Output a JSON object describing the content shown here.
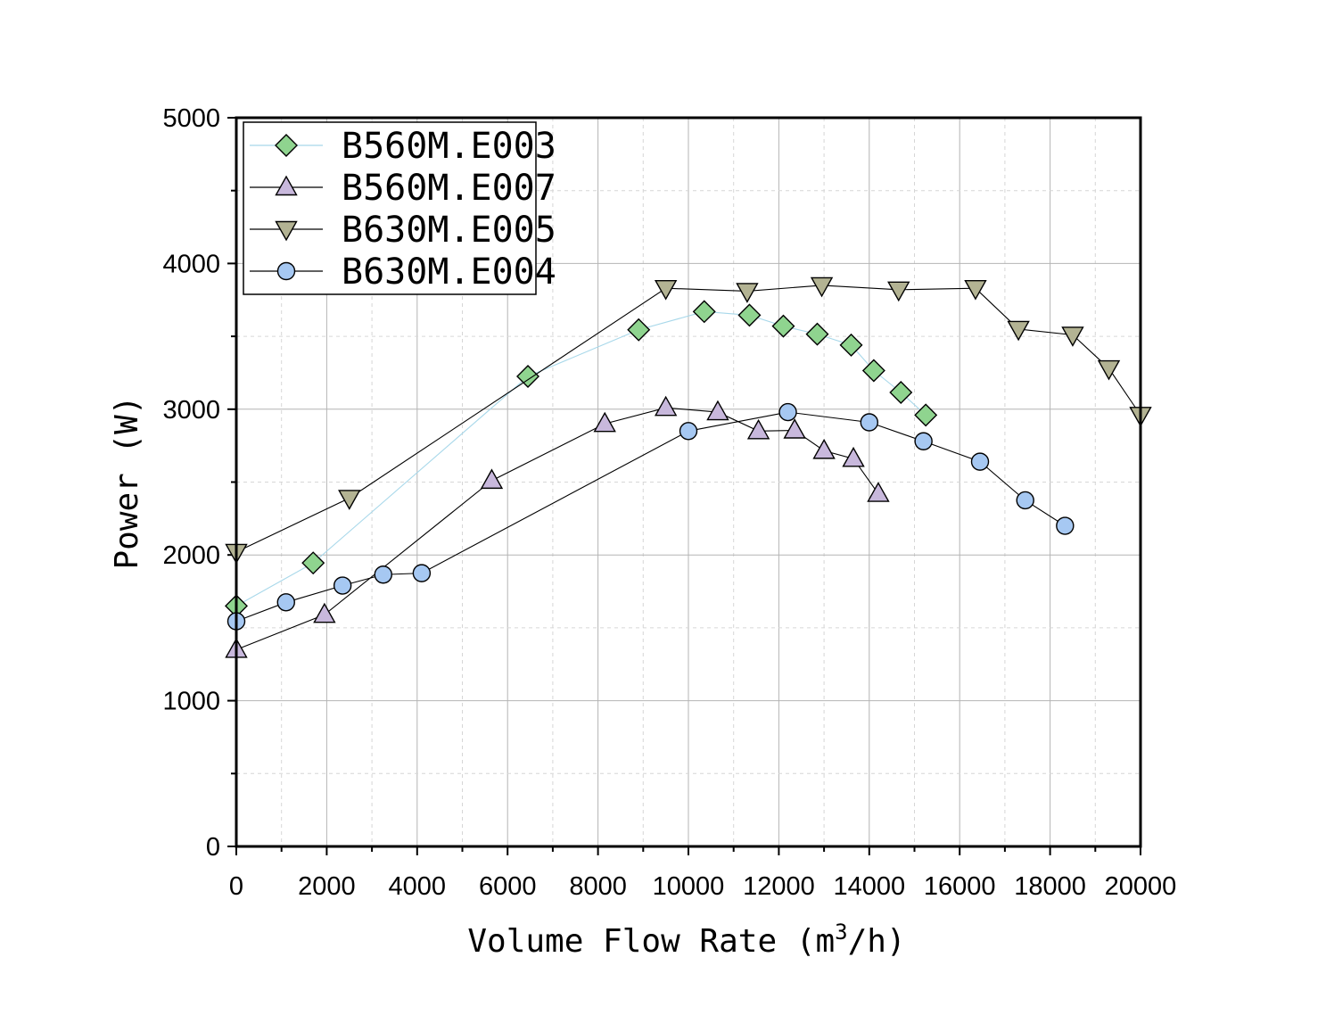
{
  "chart_data": {
    "type": "line",
    "title": "",
    "xlabel": "Volume Flow Rate (m",
    "xlabel_sup": "3",
    "xlabel_tail": "/h)",
    "ylabel": "Power (W)",
    "xlim": [
      0,
      20000
    ],
    "ylim": [
      0,
      5000
    ],
    "x_ticks": [
      "0",
      "2000",
      "4000",
      "6000",
      "8000",
      "10000",
      "12000",
      "14000",
      "16000",
      "18000",
      "20000"
    ],
    "y_ticks": [
      "0",
      "1000",
      "2000",
      "3000",
      "4000",
      "5000"
    ],
    "grid": true,
    "legend_position": "top-left",
    "series": [
      {
        "name": "B560M.E003",
        "marker": "diamond",
        "fill": "#8fd48f",
        "line_color": "#a8d8ea",
        "x": [
          0,
          1700,
          6450,
          8900,
          10350,
          11350,
          12100,
          12850,
          13600,
          14100,
          14700,
          15250
        ],
        "y": [
          1650,
          1945,
          3225,
          3545,
          3670,
          3645,
          3570,
          3515,
          3440,
          3265,
          3115,
          2960
        ]
      },
      {
        "name": "B560M.E007",
        "marker": "triangle-up",
        "fill": "#c8b8dc",
        "line_color": "#000000",
        "x": [
          0,
          1950,
          5650,
          8150,
          9500,
          10650,
          11550,
          12350,
          13000,
          13650,
          14200
        ],
        "y": [
          1350,
          1590,
          2510,
          2900,
          3010,
          2980,
          2850,
          2855,
          2715,
          2660,
          2420
        ]
      },
      {
        "name": "B630M.E005",
        "marker": "triangle-down",
        "fill": "#b3b393",
        "line_color": "#000000",
        "x": [
          0,
          2500,
          9500,
          11300,
          12950,
          14650,
          16350,
          17300,
          18500,
          19300,
          20000
        ],
        "y": [
          2020,
          2390,
          3830,
          3810,
          3850,
          3820,
          3830,
          3550,
          3510,
          3280,
          2960
        ]
      },
      {
        "name": "B630M.E004",
        "marker": "circle",
        "fill": "#a6c8f2",
        "line_color": "#000000",
        "x": [
          0,
          1100,
          2350,
          3250,
          4100,
          10000,
          12200,
          14000,
          15200,
          16450,
          17450,
          18330
        ],
        "y": [
          1545,
          1675,
          1790,
          1865,
          1875,
          2850,
          2980,
          2910,
          2780,
          2640,
          2375,
          2200
        ]
      }
    ]
  }
}
